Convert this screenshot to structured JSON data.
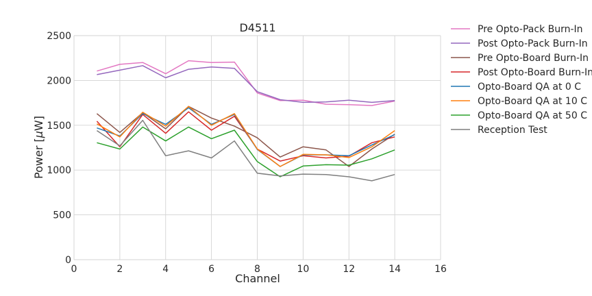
{
  "chart_data": {
    "type": "line",
    "title": "D4511",
    "xlabel": "Channel",
    "ylabel_prefix": "Power [",
    "ylabel_mu": "μ",
    "ylabel_suffix": "W]",
    "xlim": [
      0,
      16
    ],
    "ylim": [
      0,
      2500
    ],
    "xticks": [
      0,
      2,
      4,
      6,
      8,
      10,
      12,
      14,
      16
    ],
    "yticks": [
      0,
      500,
      1000,
      1500,
      2000,
      2500
    ],
    "grid": true,
    "legend_position": "outside-right",
    "x": [
      1,
      2,
      3,
      4,
      5,
      6,
      7,
      8,
      9,
      10,
      11,
      12,
      13,
      14
    ],
    "series": [
      {
        "name": "Pre Opto-Pack Burn-In",
        "color": "#e377c2",
        "values": [
          2105,
          2180,
          2200,
          2075,
          2220,
          2200,
          2205,
          1860,
          1775,
          1780,
          1735,
          1730,
          1720,
          1770
        ]
      },
      {
        "name": "Post Opto-Pack Burn-In",
        "color": "#9467bd",
        "values": [
          2065,
          2115,
          2165,
          2030,
          2125,
          2150,
          2135,
          1875,
          1785,
          1755,
          1760,
          1780,
          1755,
          1775
        ]
      },
      {
        "name": "Pre Opto-Board Burn-In",
        "color": "#8c564b",
        "values": [
          1630,
          1420,
          1640,
          1460,
          1710,
          1580,
          1490,
          1360,
          1145,
          1260,
          1225,
          1040,
          1235,
          1400
        ]
      },
      {
        "name": "Post Opto-Board Burn-In",
        "color": "#d62728",
        "values": [
          1545,
          1260,
          1620,
          1410,
          1650,
          1445,
          1600,
          1235,
          1100,
          1160,
          1135,
          1155,
          1305,
          1370
        ]
      },
      {
        "name": "Opto-Board QA at 0 C",
        "color": "#1f77b4",
        "values": [
          1470,
          1380,
          1630,
          1510,
          1695,
          1510,
          1620,
          1230,
          1040,
          1170,
          1170,
          1160,
          1280,
          1395
        ]
      },
      {
        "name": "Opto-Board QA at 10 C",
        "color": "#ff7f0e",
        "values": [
          1515,
          1370,
          1645,
          1490,
          1710,
          1500,
          1630,
          1235,
          1040,
          1175,
          1170,
          1140,
          1260,
          1440
        ]
      },
      {
        "name": "Opto-Board QA at 50 C",
        "color": "#2ca02c",
        "values": [
          1305,
          1235,
          1480,
          1325,
          1480,
          1350,
          1445,
          1095,
          925,
          1045,
          1060,
          1055,
          1125,
          1225
        ]
      },
      {
        "name": "Reception Test",
        "color": "#7f7f7f",
        "values": [
          1440,
          1270,
          1555,
          1160,
          1215,
          1135,
          1325,
          965,
          935,
          955,
          950,
          925,
          880,
          950
        ]
      }
    ]
  }
}
